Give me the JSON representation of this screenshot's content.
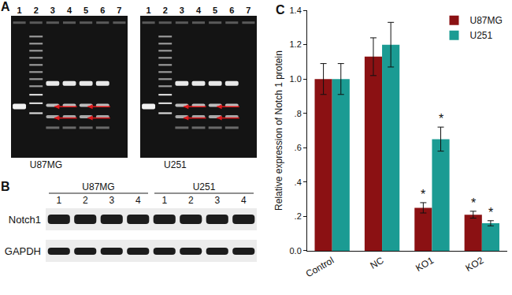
{
  "chart_data": {
    "type": "bar",
    "categories": [
      "Control",
      "NC",
      "KO1",
      "KO2"
    ],
    "series": [
      {
        "name": "U87MG",
        "color": "#8b1113",
        "values": [
          1.0,
          1.13,
          0.25,
          0.21
        ],
        "errors": [
          0.09,
          0.11,
          0.03,
          0.02
        ]
      },
      {
        "name": "U251",
        "color": "#1b9b93",
        "values": [
          1.0,
          1.2,
          0.65,
          0.16
        ],
        "errors": [
          0.09,
          0.13,
          0.07,
          0.015
        ]
      }
    ],
    "y_label": "Relative expression of Notch 1 protein",
    "ylim": [
      0,
      1.4
    ],
    "yticks": [
      {
        "value": 0,
        "label": "0.0"
      },
      {
        "value": 0.2,
        "label": ".2"
      },
      {
        "value": 0.4,
        "label": ".4"
      },
      {
        "value": 0.6,
        "label": ".6"
      },
      {
        "value": 0.8,
        "label": ".8"
      },
      {
        "value": 1.0,
        "label": "1.0"
      },
      {
        "value": 1.2,
        "label": "1.2"
      },
      {
        "value": 1.4,
        "label": "1.4"
      }
    ],
    "grid": false,
    "legend": "upper right",
    "annotations": [
      {
        "text": "*",
        "category": "KO1",
        "series": "U87MG"
      },
      {
        "text": "*",
        "category": "KO1",
        "series": "U251"
      },
      {
        "text": "*",
        "category": "KO2",
        "series": "U87MG"
      },
      {
        "text": "*",
        "category": "KO2",
        "series": "U251"
      }
    ]
  },
  "panels": {
    "labels": [
      "A",
      "B",
      "C"
    ],
    "gels": {
      "lanes": [
        "1",
        "2",
        "3",
        "4",
        "5",
        "6",
        "7"
      ],
      "cell_lines": [
        "U87MG",
        "U251"
      ]
    },
    "blot": {
      "cell_lines": [
        "U87MG",
        "U251"
      ],
      "lanes": [
        "1",
        "2",
        "3",
        "4"
      ],
      "proteins": [
        "Notch1",
        "GAPDH"
      ]
    }
  }
}
